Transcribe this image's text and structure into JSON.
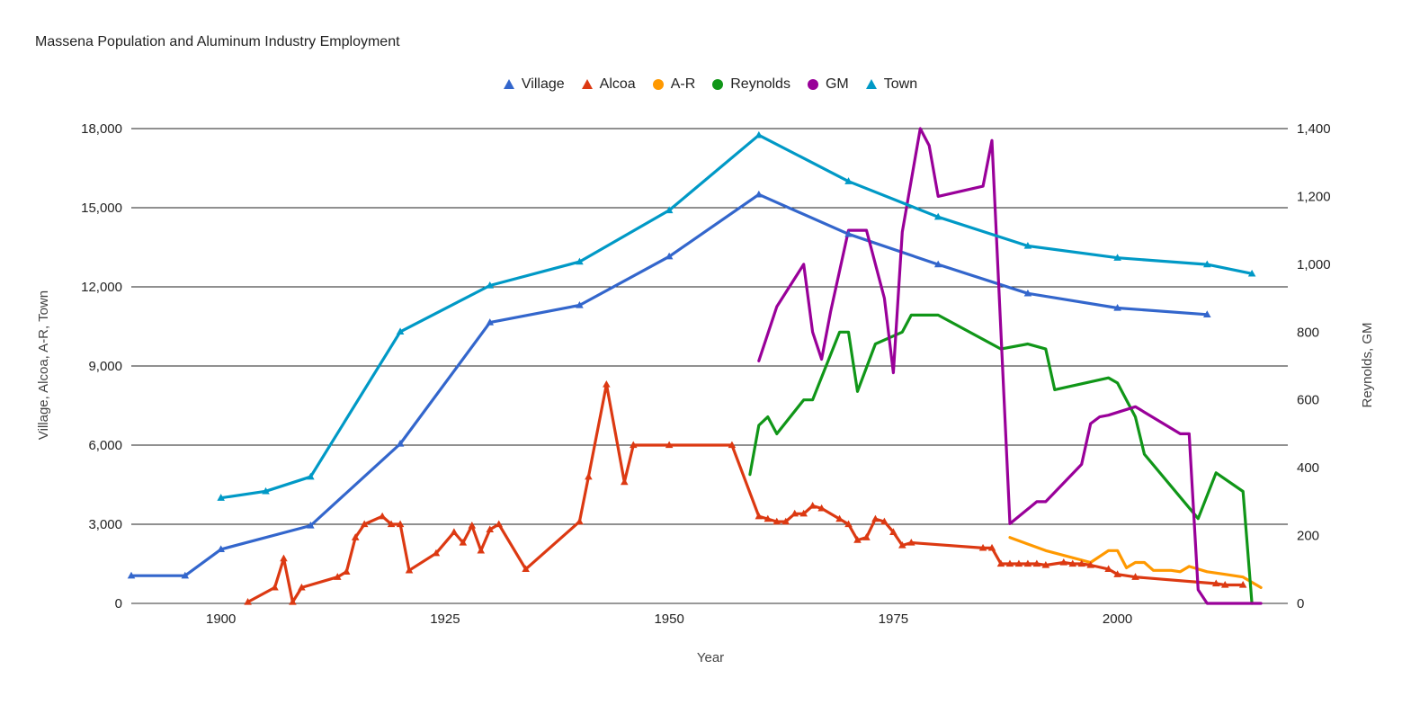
{
  "chart_data": {
    "type": "line",
    "title": "Massena Population and Aluminum Industry Employment",
    "xlabel": "Year",
    "ylabel_left": "Village, Alcoa, A-R, Town",
    "ylabel_right": "Reynolds, GM",
    "xlim": [
      1890,
      2019
    ],
    "x_ticks": [
      1900,
      1925,
      1950,
      1975,
      2000
    ],
    "ylim_left": [
      0,
      18000
    ],
    "y_ticks_left": [
      0,
      3000,
      6000,
      9000,
      12000,
      15000,
      18000
    ],
    "y_tick_labels_left": [
      "0",
      "3,000",
      "6,000",
      "9,000",
      "12,000",
      "15,000",
      "18,000"
    ],
    "ylim_right": [
      0,
      1400
    ],
    "y_ticks_right": [
      0,
      200,
      400,
      600,
      800,
      1000,
      1200,
      1400
    ],
    "y_tick_labels_right": [
      "0",
      "200",
      "400",
      "600",
      "800",
      "1,000",
      "1,200",
      "1,400"
    ],
    "grid": true,
    "legend_position": "top",
    "series": [
      {
        "name": "Village",
        "axis": "left",
        "color": "#3366cc",
        "marker": "triangle",
        "points": [
          [
            1890,
            1050
          ],
          [
            1896,
            1050
          ],
          [
            1900,
            2050
          ],
          [
            1910,
            2950
          ],
          [
            1920,
            6050
          ],
          [
            1930,
            10650
          ],
          [
            1940,
            11300
          ],
          [
            1950,
            13150
          ],
          [
            1960,
            15500
          ],
          [
            1970,
            14000
          ],
          [
            1980,
            12850
          ],
          [
            1990,
            11750
          ],
          [
            2000,
            11200
          ],
          [
            2010,
            10950
          ]
        ]
      },
      {
        "name": "Alcoa",
        "axis": "left",
        "color": "#dc3912",
        "marker": "triangle",
        "points": [
          [
            1903,
            50
          ],
          [
            1906,
            600
          ],
          [
            1907,
            1700
          ],
          [
            1908,
            50
          ],
          [
            1909,
            600
          ],
          [
            1913,
            1000
          ],
          [
            1914,
            1200
          ],
          [
            1915,
            2500
          ],
          [
            1916,
            3000
          ],
          [
            1918,
            3300
          ],
          [
            1919,
            3000
          ],
          [
            1920,
            3000
          ],
          [
            1921,
            1250
          ],
          [
            1924,
            1900
          ],
          [
            1926,
            2700
          ],
          [
            1927,
            2300
          ],
          [
            1928,
            2950
          ],
          [
            1929,
            2000
          ],
          [
            1930,
            2800
          ],
          [
            1931,
            3000
          ],
          [
            1934,
            1300
          ],
          [
            1940,
            3100
          ],
          [
            1941,
            4800
          ],
          [
            1943,
            8300
          ],
          [
            1945,
            4600
          ],
          [
            1946,
            6000
          ],
          [
            1950,
            6000
          ],
          [
            1957,
            6000
          ],
          [
            1960,
            3300
          ],
          [
            1961,
            3200
          ],
          [
            1962,
            3100
          ],
          [
            1963,
            3100
          ],
          [
            1964,
            3400
          ],
          [
            1965,
            3400
          ],
          [
            1966,
            3700
          ],
          [
            1967,
            3600
          ],
          [
            1969,
            3200
          ],
          [
            1970,
            3000
          ],
          [
            1971,
            2400
          ],
          [
            1972,
            2500
          ],
          [
            1973,
            3200
          ],
          [
            1974,
            3100
          ],
          [
            1975,
            2700
          ],
          [
            1976,
            2200
          ],
          [
            1977,
            2300
          ],
          [
            1985,
            2100
          ],
          [
            1986,
            2100
          ],
          [
            1987,
            1500
          ],
          [
            1988,
            1500
          ],
          [
            1989,
            1500
          ],
          [
            1990,
            1500
          ],
          [
            1991,
            1500
          ],
          [
            1992,
            1450
          ],
          [
            1994,
            1550
          ],
          [
            1995,
            1500
          ],
          [
            1996,
            1500
          ],
          [
            1997,
            1450
          ],
          [
            1999,
            1300
          ],
          [
            2000,
            1100
          ],
          [
            2002,
            1000
          ],
          [
            2011,
            750
          ],
          [
            2012,
            700
          ],
          [
            2014,
            700
          ]
        ]
      },
      {
        "name": "A-R",
        "axis": "left",
        "color": "#ff9900",
        "marker": "circle",
        "points": [
          [
            1988,
            2500
          ],
          [
            1992,
            2000
          ],
          [
            1997,
            1550
          ],
          [
            1999,
            2000
          ],
          [
            2000,
            2000
          ],
          [
            2001,
            1350
          ],
          [
            2002,
            1550
          ],
          [
            2003,
            1550
          ],
          [
            2004,
            1250
          ],
          [
            2006,
            1250
          ],
          [
            2007,
            1200
          ],
          [
            2008,
            1400
          ],
          [
            2010,
            1200
          ],
          [
            2012,
            1100
          ],
          [
            2014,
            1000
          ],
          [
            2016,
            600
          ]
        ]
      },
      {
        "name": "Reynolds",
        "axis": "right",
        "color": "#109618",
        "marker": "circle",
        "points": [
          [
            1959,
            380
          ],
          [
            1960,
            525
          ],
          [
            1961,
            550
          ],
          [
            1962,
            500
          ],
          [
            1965,
            600
          ],
          [
            1966,
            600
          ],
          [
            1969,
            800
          ],
          [
            1970,
            800
          ],
          [
            1971,
            625
          ],
          [
            1973,
            765
          ],
          [
            1976,
            800
          ],
          [
            1977,
            850
          ],
          [
            1980,
            850
          ],
          [
            1987,
            750
          ],
          [
            1990,
            765
          ],
          [
            1992,
            750
          ],
          [
            1993,
            630
          ],
          [
            1999,
            665
          ],
          [
            2000,
            650
          ],
          [
            2002,
            550
          ],
          [
            2003,
            440
          ],
          [
            2009,
            250
          ],
          [
            2011,
            385
          ],
          [
            2014,
            330
          ],
          [
            2015,
            0
          ]
        ]
      },
      {
        "name": "GM",
        "axis": "right",
        "color": "#990099",
        "marker": "circle",
        "points": [
          [
            1960,
            715
          ],
          [
            1962,
            875
          ],
          [
            1965,
            1000
          ],
          [
            1966,
            800
          ],
          [
            1967,
            720
          ],
          [
            1968,
            860
          ],
          [
            1970,
            1100
          ],
          [
            1972,
            1100
          ],
          [
            1974,
            900
          ],
          [
            1975,
            680
          ],
          [
            1976,
            1095
          ],
          [
            1978,
            1400
          ],
          [
            1979,
            1350
          ],
          [
            1980,
            1200
          ],
          [
            1985,
            1230
          ],
          [
            1986,
            1365
          ],
          [
            1988,
            235
          ],
          [
            1991,
            300
          ],
          [
            1992,
            300
          ],
          [
            1996,
            410
          ],
          [
            1997,
            530
          ],
          [
            1998,
            550
          ],
          [
            1999,
            555
          ],
          [
            2002,
            580
          ],
          [
            2007,
            500
          ],
          [
            2008,
            500
          ],
          [
            2009,
            40
          ],
          [
            2010,
            0
          ],
          [
            2016,
            0
          ]
        ]
      },
      {
        "name": "Town",
        "axis": "left",
        "color": "#0099c6",
        "marker": "triangle",
        "points": [
          [
            1900,
            4000
          ],
          [
            1905,
            4250
          ],
          [
            1910,
            4800
          ],
          [
            1920,
            10300
          ],
          [
            1930,
            12050
          ],
          [
            1940,
            12950
          ],
          [
            1950,
            14900
          ],
          [
            1960,
            17750
          ],
          [
            1970,
            16000
          ],
          [
            1980,
            14650
          ],
          [
            1990,
            13550
          ],
          [
            2000,
            13100
          ],
          [
            2010,
            12850
          ],
          [
            2015,
            12500
          ]
        ]
      }
    ]
  }
}
